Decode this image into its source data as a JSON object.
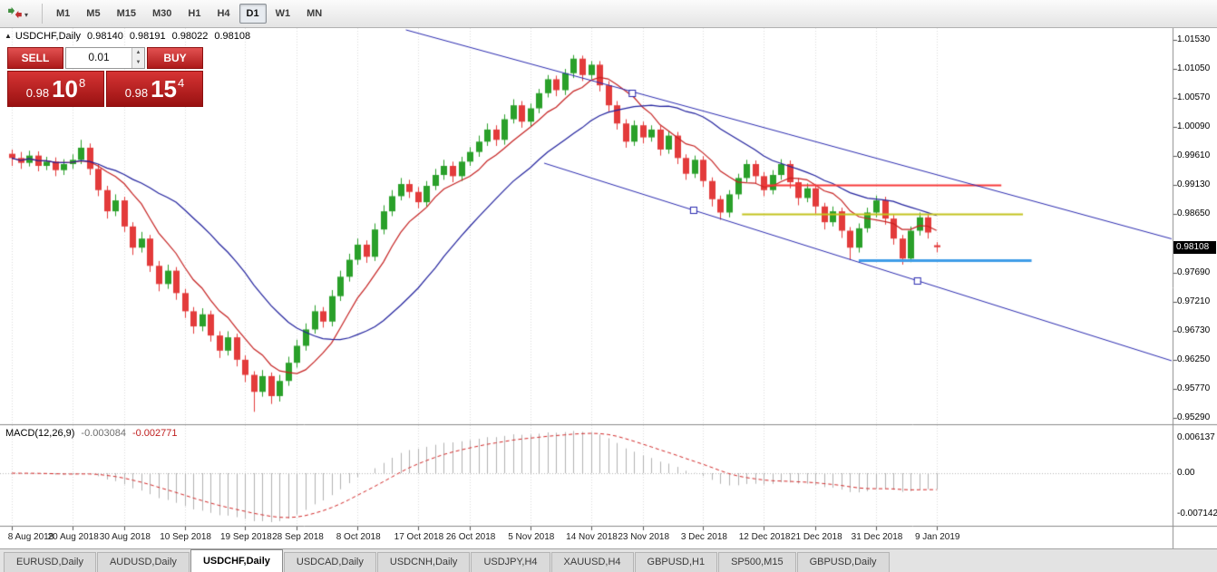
{
  "toolbar": {
    "timeframes": [
      {
        "label": "M1",
        "active": false
      },
      {
        "label": "M5",
        "active": false
      },
      {
        "label": "M15",
        "active": false
      },
      {
        "label": "M30",
        "active": false
      },
      {
        "label": "H1",
        "active": false
      },
      {
        "label": "H4",
        "active": false
      },
      {
        "label": "D1",
        "active": true
      },
      {
        "label": "W1",
        "active": false
      },
      {
        "label": "MN",
        "active": false
      }
    ],
    "icons": {
      "caret": "▾"
    }
  },
  "chart": {
    "header": {
      "marker": "▲",
      "symbol": "USDCHF,Daily",
      "open": "0.98140",
      "high": "0.98191",
      "low": "0.98022",
      "close": "0.98108"
    },
    "one_click": {
      "sell_label": "SELL",
      "buy_label": "BUY",
      "volume": "0.01",
      "icons": {
        "spin_up": "▲",
        "spin_down": "▼"
      },
      "sell_price": {
        "base": "0.98",
        "main": "10",
        "sup": "8"
      },
      "buy_price": {
        "base": "0.98",
        "main": "15",
        "sup": "4"
      }
    },
    "price_tag": "0.98108",
    "macd_header": {
      "label": "MACD(12,26,9)",
      "main_value": "-0.003084",
      "signal_value": "-0.002771"
    }
  },
  "chart_data": {
    "type": "candlestick",
    "symbol": "USDCHF",
    "timeframe": "Daily",
    "colors": {
      "up": "#2aa02a",
      "down": "#e33b3b",
      "ma_fast": "#c62222",
      "ma_slow": "#22229e",
      "histogram": "#b2b2b2",
      "signal": "#d32a2a",
      "channel": "#2a2ab0"
    },
    "candles": [
      [
        0.9965,
        0.9972,
        0.9945,
        0.9958
      ],
      [
        0.9958,
        0.9968,
        0.994,
        0.995
      ],
      [
        0.995,
        0.997,
        0.9944,
        0.9962
      ],
      [
        0.9962,
        0.9969,
        0.9936,
        0.9945
      ],
      [
        0.9945,
        0.996,
        0.9938,
        0.9952
      ],
      [
        0.9952,
        0.9959,
        0.9928,
        0.9938
      ],
      [
        0.9938,
        0.9956,
        0.993,
        0.9948
      ],
      [
        0.9948,
        0.9964,
        0.994,
        0.9955
      ],
      [
        0.9955,
        0.9988,
        0.9948,
        0.9975
      ],
      [
        0.9975,
        0.9982,
        0.993,
        0.994
      ],
      [
        0.994,
        0.9948,
        0.9895,
        0.9905
      ],
      [
        0.9905,
        0.9912,
        0.9858,
        0.987
      ],
      [
        0.987,
        0.9898,
        0.9862,
        0.9888
      ],
      [
        0.9888,
        0.9894,
        0.9836,
        0.9845
      ],
      [
        0.9845,
        0.9852,
        0.9798,
        0.981
      ],
      [
        0.981,
        0.9836,
        0.9802,
        0.9825
      ],
      [
        0.9825,
        0.9831,
        0.977,
        0.978
      ],
      [
        0.978,
        0.9788,
        0.9738,
        0.975
      ],
      [
        0.975,
        0.9782,
        0.9742,
        0.9772
      ],
      [
        0.9772,
        0.9778,
        0.9724,
        0.9735
      ],
      [
        0.9735,
        0.9742,
        0.9694,
        0.9705
      ],
      [
        0.9705,
        0.9712,
        0.9668,
        0.968
      ],
      [
        0.968,
        0.971,
        0.9672,
        0.97
      ],
      [
        0.97,
        0.9706,
        0.9655,
        0.9665
      ],
      [
        0.9665,
        0.9672,
        0.9628,
        0.964
      ],
      [
        0.964,
        0.9672,
        0.9632,
        0.9662
      ],
      [
        0.9662,
        0.9668,
        0.9614,
        0.9625
      ],
      [
        0.9625,
        0.9632,
        0.9588,
        0.96
      ],
      [
        0.96,
        0.9606,
        0.9539,
        0.9572
      ],
      [
        0.9572,
        0.9608,
        0.9564,
        0.9598
      ],
      [
        0.9598,
        0.9604,
        0.9552,
        0.9565
      ],
      [
        0.9565,
        0.96,
        0.9556,
        0.959
      ],
      [
        0.959,
        0.963,
        0.9582,
        0.962
      ],
      [
        0.962,
        0.9658,
        0.9612,
        0.9648
      ],
      [
        0.9648,
        0.9685,
        0.964,
        0.9675
      ],
      [
        0.9675,
        0.9715,
        0.9668,
        0.9705
      ],
      [
        0.9705,
        0.9712,
        0.9678,
        0.9688
      ],
      [
        0.9688,
        0.974,
        0.968,
        0.973
      ],
      [
        0.973,
        0.9772,
        0.9722,
        0.9762
      ],
      [
        0.9762,
        0.98,
        0.9754,
        0.979
      ],
      [
        0.979,
        0.9825,
        0.9782,
        0.9815
      ],
      [
        0.9815,
        0.9822,
        0.9785,
        0.9795
      ],
      [
        0.9795,
        0.985,
        0.9788,
        0.984
      ],
      [
        0.984,
        0.988,
        0.9832,
        0.987
      ],
      [
        0.987,
        0.9905,
        0.9862,
        0.9895
      ],
      [
        0.9895,
        0.9925,
        0.9888,
        0.9915
      ],
      [
        0.9915,
        0.9922,
        0.9892,
        0.9902
      ],
      [
        0.9902,
        0.991,
        0.9875,
        0.9885
      ],
      [
        0.9885,
        0.992,
        0.9878,
        0.9912
      ],
      [
        0.9912,
        0.994,
        0.9905,
        0.993
      ],
      [
        0.993,
        0.9955,
        0.9922,
        0.9945
      ],
      [
        0.9945,
        0.9952,
        0.9918,
        0.9928
      ],
      [
        0.9928,
        0.996,
        0.992,
        0.9952
      ],
      [
        0.9952,
        0.9976,
        0.9945,
        0.9968
      ],
      [
        0.9968,
        0.9995,
        0.996,
        0.9985
      ],
      [
        0.9985,
        1.0015,
        0.9978,
        1.0005
      ],
      [
        1.0005,
        1.0012,
        0.9978,
        0.9988
      ],
      [
        0.9988,
        1.003,
        0.998,
        1.0022
      ],
      [
        1.0022,
        1.0055,
        1.0015,
        1.0045
      ],
      [
        1.0045,
        1.0052,
        1.0008,
        1.0018
      ],
      [
        1.0018,
        1.0048,
        1.001,
        1.004
      ],
      [
        1.004,
        1.0072,
        1.0032,
        1.0065
      ],
      [
        1.0065,
        1.0095,
        1.0058,
        1.0088
      ],
      [
        1.0088,
        1.0094,
        1.006,
        1.007
      ],
      [
        1.007,
        1.0105,
        1.0062,
        1.0098
      ],
      [
        1.0098,
        1.0128,
        1.009,
        1.0122
      ],
      [
        1.0122,
        1.0127,
        1.0085,
        1.0095
      ],
      [
        1.0095,
        1.0118,
        1.0088,
        1.0112
      ],
      [
        1.0112,
        1.0118,
        1.0068,
        1.0078
      ],
      [
        1.0078,
        1.0085,
        1.0035,
        1.0045
      ],
      [
        1.0045,
        1.0052,
        1.0005,
        1.0015
      ],
      [
        1.0015,
        1.0022,
        0.9975,
        0.9985
      ],
      [
        0.9985,
        1.002,
        0.9978,
        1.0012
      ],
      [
        1.0012,
        1.0018,
        0.9982,
        0.9992
      ],
      [
        0.9992,
        1.0012,
        0.9985,
        1.0005
      ],
      [
        1.0005,
        1.0011,
        0.9962,
        0.9972
      ],
      [
        0.9972,
        1.0002,
        0.9965,
        0.9995
      ],
      [
        0.9995,
        1.0001,
        0.9948,
        0.9958
      ],
      [
        0.9958,
        0.9964,
        0.9922,
        0.9932
      ],
      [
        0.9932,
        0.9962,
        0.9925,
        0.9955
      ],
      [
        0.9955,
        0.9961,
        0.991,
        0.992
      ],
      [
        0.992,
        0.9926,
        0.9878,
        0.989
      ],
      [
        0.989,
        0.9896,
        0.9856,
        0.9868
      ],
      [
        0.9868,
        0.9905,
        0.986,
        0.9898
      ],
      [
        0.9898,
        0.9932,
        0.989,
        0.9925
      ],
      [
        0.9925,
        0.9955,
        0.9918,
        0.9948
      ],
      [
        0.9948,
        0.9954,
        0.9916,
        0.9928
      ],
      [
        0.9928,
        0.9935,
        0.9895,
        0.9905
      ],
      [
        0.9905,
        0.9938,
        0.9898,
        0.993
      ],
      [
        0.993,
        0.9956,
        0.9922,
        0.9948
      ],
      [
        0.9948,
        0.9954,
        0.9908,
        0.9918
      ],
      [
        0.9918,
        0.9925,
        0.988,
        0.9892
      ],
      [
        0.9892,
        0.9916,
        0.9885,
        0.9908
      ],
      [
        0.9908,
        0.9914,
        0.9866,
        0.9878
      ],
      [
        0.9878,
        0.9884,
        0.984,
        0.9852
      ],
      [
        0.9852,
        0.9878,
        0.9845,
        0.987
      ],
      [
        0.987,
        0.9876,
        0.9826,
        0.9838
      ],
      [
        0.9838,
        0.9844,
        0.979,
        0.981
      ],
      [
        0.981,
        0.985,
        0.9802,
        0.9842
      ],
      [
        0.9842,
        0.9876,
        0.9835,
        0.9868
      ],
      [
        0.9868,
        0.9896,
        0.986,
        0.9888
      ],
      [
        0.9888,
        0.9894,
        0.9848,
        0.9858
      ],
      [
        0.9858,
        0.9864,
        0.9815,
        0.9825
      ],
      [
        0.9825,
        0.9831,
        0.9782,
        0.9792
      ],
      [
        0.9792,
        0.9845,
        0.9786,
        0.9838
      ],
      [
        0.9838,
        0.9868,
        0.983,
        0.986
      ],
      [
        0.986,
        0.9866,
        0.9825,
        0.9835
      ],
      [
        0.9814,
        0.98191,
        0.98022,
        0.98108
      ]
    ],
    "x_ticks": [
      {
        "label": "8 Aug 2018",
        "index": 0
      },
      {
        "label": "20 Aug 2018",
        "index": 7
      },
      {
        "label": "30 Aug 2018",
        "index": 13
      },
      {
        "label": "10 Sep 2018",
        "index": 20
      },
      {
        "label": "19 Sep 2018",
        "index": 27
      },
      {
        "label": "28 Sep 2018",
        "index": 33
      },
      {
        "label": "8 Oct 2018",
        "index": 40
      },
      {
        "label": "17 Oct 2018",
        "index": 47
      },
      {
        "label": "26 Oct 2018",
        "index": 53
      },
      {
        "label": "5 Nov 2018",
        "index": 60
      },
      {
        "label": "14 Nov 2018",
        "index": 67
      },
      {
        "label": "23 Nov 2018",
        "index": 73
      },
      {
        "label": "3 Dec 2018",
        "index": 80
      },
      {
        "label": "12 Dec 2018",
        "index": 87
      },
      {
        "label": "21 Dec 2018",
        "index": 93
      },
      {
        "label": "31 Dec 2018",
        "index": 100
      },
      {
        "label": "9 Jan 2019",
        "index": 107
      }
    ],
    "y_axis_labels": [
      "1.01530",
      "1.01050",
      "1.00570",
      "1.00090",
      "0.99610",
      "0.99130",
      "0.98650",
      "0.97690",
      "0.97210",
      "0.96730",
      "0.96250",
      "0.95770",
      "0.95290"
    ],
    "current_price": 0.98108,
    "overlays": {
      "ma_fast_period": 8,
      "ma_slow_period": 20,
      "hlines": [
        {
          "price": 0.9913,
          "color": "#f83838",
          "from_index": 87,
          "to_index": 114.5,
          "width": 2
        },
        {
          "price": 0.9865,
          "color": "#c3c31d",
          "from_index": 84.5,
          "to_index": 117,
          "width": 2
        },
        {
          "price": 0.979,
          "color": "#3f9de8",
          "from_index": 98,
          "to_index": 118,
          "width": 3
        }
      ],
      "channel": {
        "color": "#2a2ab0",
        "lines": [
          {
            "i1": 45.6,
            "p1": 1.01695,
            "i2": 134.2,
            "p2": 0.98246
          },
          {
            "i1": 61.6,
            "p1": 0.99495,
            "i2": 134.2,
            "p2": 0.96233
          }
        ],
        "handles": [
          {
            "i": 71.8,
            "p": 1.00647
          },
          {
            "i": 78.9,
            "p": 0.98717
          },
          {
            "i": 104.8,
            "p": 0.9755
          }
        ]
      }
    },
    "macd": {
      "fast": 12,
      "slow": 26,
      "signal": 9,
      "scale_labels": [
        "0.006137",
        "0.00",
        "-0.007142"
      ]
    }
  },
  "tabs": {
    "items": [
      "EURUSD,Daily",
      "AUDUSD,Daily",
      "USDCHF,Daily",
      "USDCAD,Daily",
      "USDCNH,Daily",
      "USDJPY,H4",
      "XAUUSD,H4",
      "GBPUSD,H1",
      "SP500,M15",
      "GBPUSD,Daily"
    ],
    "active_index": 2
  }
}
